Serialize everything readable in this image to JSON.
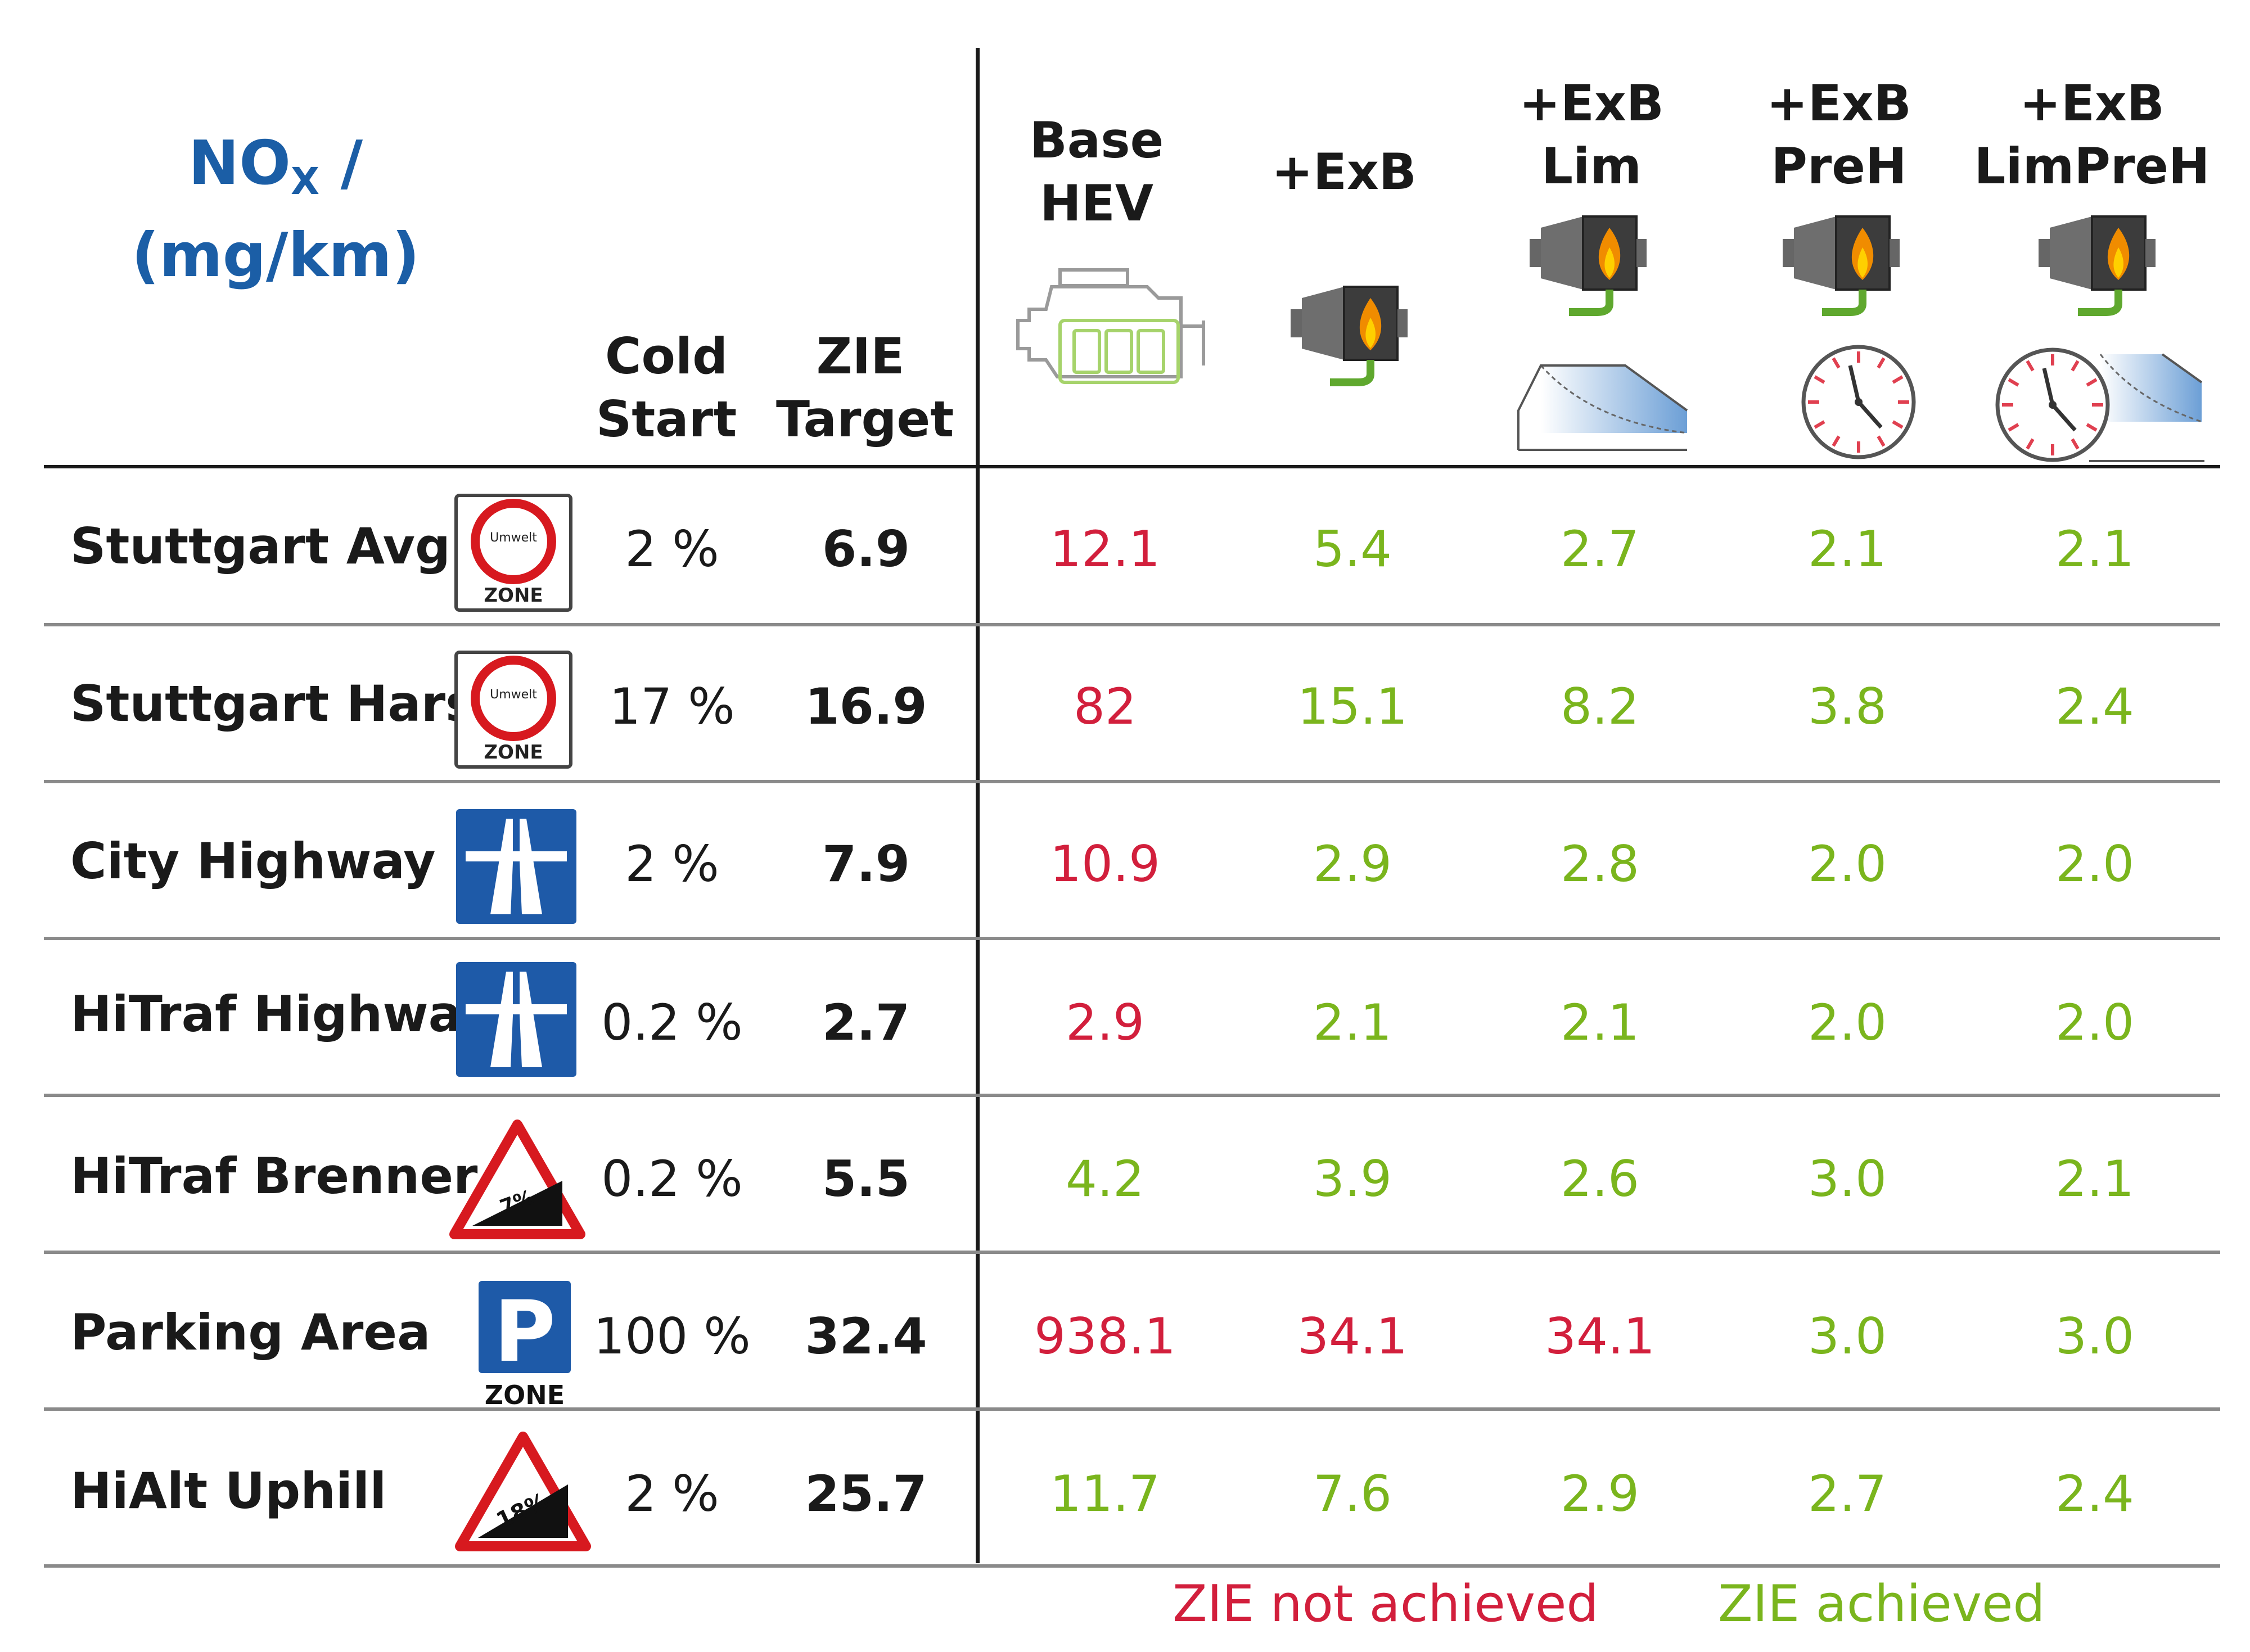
{
  "chart_data": {
    "type": "table",
    "title": "NO",
    "title_sub": "X",
    "title_unit": "/ (mg/km)",
    "columns": {
      "cold_start": [
        "Cold",
        "Start"
      ],
      "zie_target": [
        "ZIE",
        "Target"
      ],
      "configs": [
        {
          "lines": [
            "Base",
            "HEV"
          ],
          "icon": "hybrid-engine-battery-icon"
        },
        {
          "lines": [
            "+ExB"
          ],
          "icon": "exhaust-burner-icon"
        },
        {
          "lines": [
            "+ExB",
            "Lim"
          ],
          "icon": "burner-with-limit-curve-icon"
        },
        {
          "lines": [
            "+ExB",
            "PreH"
          ],
          "icon": "burner-with-clock-icon"
        },
        {
          "lines": [
            "+ExB",
            "LimPreH"
          ],
          "icon": "burner-with-clock-and-curve-icon"
        }
      ]
    },
    "rows": [
      {
        "label": "Stuttgart Avg",
        "sign": "environmental-zone-sign",
        "cold_start": "2 %",
        "target": "6.9",
        "values": [
          "12.1",
          "5.4",
          "2.7",
          "2.1",
          "2.1"
        ],
        "achieved": [
          false,
          true,
          true,
          true,
          true
        ]
      },
      {
        "label": "Stuttgart Harsh",
        "sign": "environmental-zone-sign",
        "cold_start": "17 %",
        "target": "16.9",
        "values": [
          "82",
          "15.1",
          "8.2",
          "3.8",
          "2.4"
        ],
        "achieved": [
          false,
          true,
          true,
          true,
          true
        ]
      },
      {
        "label": "City Highway",
        "sign": "autobahn-sign",
        "cold_start": "2 %",
        "target": "7.9",
        "values": [
          "10.9",
          "2.9",
          "2.8",
          "2.0",
          "2.0"
        ],
        "achieved": [
          false,
          true,
          true,
          true,
          true
        ]
      },
      {
        "label": "HiTraf Highway",
        "sign": "autobahn-sign",
        "cold_start": "0.2 %",
        "target": "2.7",
        "values": [
          "2.9",
          "2.1",
          "2.1",
          "2.0",
          "2.0"
        ],
        "achieved": [
          false,
          true,
          true,
          true,
          true
        ]
      },
      {
        "label": "HiTraf Brenner",
        "sign": "gradient-sign",
        "sign_text": "7%",
        "cold_start": "0.2 %",
        "target": "5.5",
        "values": [
          "4.2",
          "3.9",
          "2.6",
          "3.0",
          "2.1"
        ],
        "achieved": [
          true,
          true,
          true,
          true,
          true
        ]
      },
      {
        "label": "Parking Area",
        "sign": "parking-zone-sign",
        "cold_start": "100 %",
        "target": "32.4",
        "values": [
          "938.1",
          "34.1",
          "34.1",
          "3.0",
          "3.0"
        ],
        "achieved": [
          false,
          false,
          false,
          true,
          true
        ]
      },
      {
        "label": "HiAlt Uphill",
        "sign": "gradient-sign",
        "sign_text": "18%",
        "cold_start": "2 %",
        "target": "25.7",
        "values": [
          "11.7",
          "7.6",
          "2.9",
          "2.7",
          "2.4"
        ],
        "achieved": [
          true,
          true,
          true,
          true,
          true
        ]
      }
    ],
    "legend": {
      "not_achieved": "ZIE not achieved",
      "achieved": "ZIE achieved"
    },
    "sign_labels": {
      "umwelt": "Umwelt",
      "zone": "ZONE",
      "parking": "P"
    },
    "colors": {
      "not_achieved": "#d21f3c",
      "achieved": "#7ab51d",
      "title": "#1b5ea6",
      "sign_blue": "#1e5aa8",
      "sign_red": "#d7191f"
    }
  }
}
